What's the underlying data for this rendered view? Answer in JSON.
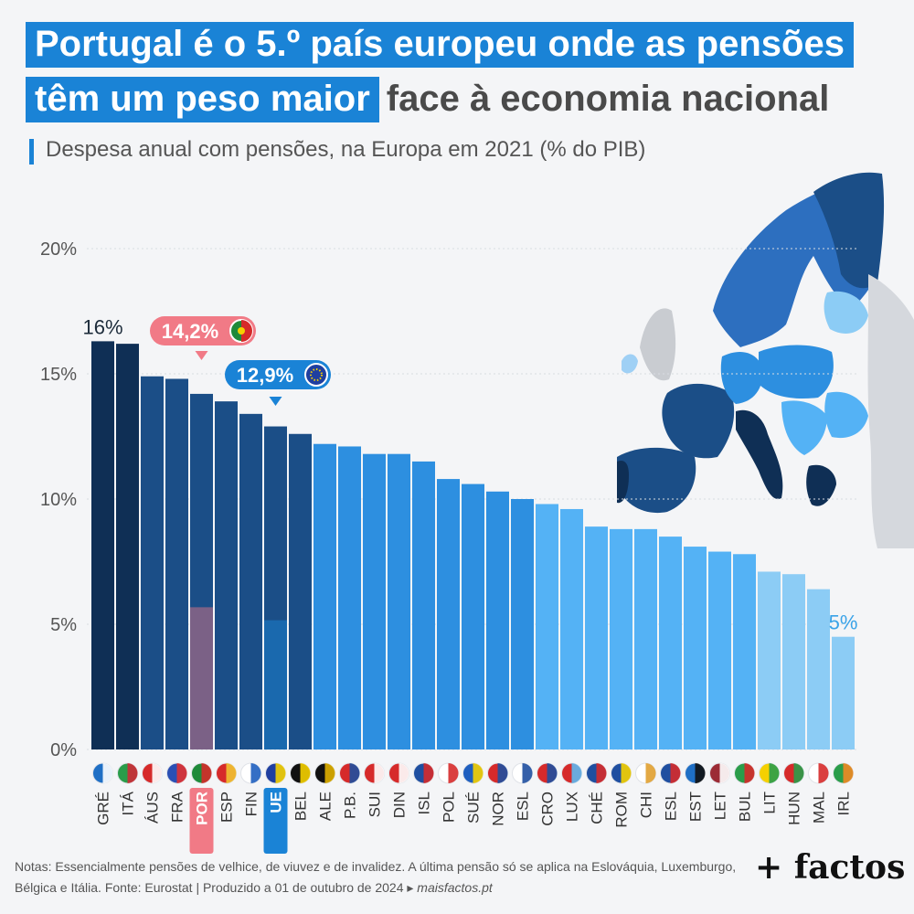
{
  "title": {
    "line1": "Portugal é o 5.º país europeu onde as pensões",
    "line2_highlight": "têm um peso maior",
    "line2_rest": "face à economia nacional"
  },
  "subtitle": "Despesa anual com pensões, na Europa em 2021 (% do PIB)",
  "colors": {
    "darkest": "#0f2f55",
    "dark": "#1b4e87",
    "medium": "#2d8fe0",
    "light": "#54b2f5",
    "lightest": "#8cccf5",
    "portugal_callout": "#f17a86",
    "eu_callout": "#1a83d6",
    "accent": "#1a83d6"
  },
  "chart_data": {
    "type": "bar",
    "title": "Despesa anual com pensões, na Europa em 2021 (% do PIB)",
    "xlabel": "",
    "ylabel": "",
    "ylim": [
      0,
      20
    ],
    "yticks": [
      "0%",
      "5%",
      "10%",
      "15%",
      "20%"
    ],
    "grid": true,
    "categories": [
      "GRÉ",
      "ITÁ",
      "ÁUS",
      "FRA",
      "POR",
      "ESP",
      "FIN",
      "UE",
      "BEL",
      "ALE",
      "P.B.",
      "SUI",
      "DIN",
      "ISL",
      "POL",
      "SUÉ",
      "NOR",
      "ESL",
      "CRO",
      "LUX",
      "CHÉ",
      "ROM",
      "CHI",
      "ESL",
      "EST",
      "LET",
      "BUL",
      "LIT",
      "HUN",
      "MAL",
      "IRL"
    ],
    "values": [
      16.3,
      16.2,
      14.9,
      14.8,
      14.2,
      13.9,
      13.4,
      12.9,
      12.6,
      12.2,
      12.1,
      11.8,
      11.8,
      11.5,
      10.8,
      10.6,
      10.3,
      10.0,
      9.8,
      9.6,
      8.9,
      8.8,
      8.8,
      8.5,
      8.1,
      7.9,
      7.8,
      7.1,
      7.0,
      6.4,
      4.5
    ],
    "shade": [
      0,
      0,
      1,
      1,
      1,
      1,
      1,
      1,
      1,
      2,
      2,
      2,
      2,
      2,
      2,
      2,
      2,
      2,
      3,
      3,
      3,
      3,
      3,
      3,
      3,
      3,
      3,
      4,
      4,
      4,
      4
    ],
    "flags": [
      "gr",
      "it",
      "at",
      "fr",
      "pt",
      "es",
      "fi",
      "eu",
      "be",
      "de",
      "nl",
      "ch",
      "dk",
      "is",
      "pl",
      "se",
      "no",
      "si",
      "hr",
      "lu",
      "cz",
      "ro",
      "cy",
      "sk",
      "ee",
      "lv",
      "bg",
      "lt",
      "hu",
      "mt",
      "ie"
    ],
    "data_labels": [
      {
        "index": 0,
        "text": "16%"
      },
      {
        "index": 30,
        "text": "5%"
      }
    ],
    "callouts": [
      {
        "index": 4,
        "text": "14,2%",
        "badge": "portugal-flag",
        "highlight_label": true
      },
      {
        "index": 7,
        "text": "12,9%",
        "badge": "eu-flag",
        "highlight_label": true
      }
    ]
  },
  "notes": {
    "text": "Notas: Essencialmente pensões de velhice, de viuvez e de invalidez. A última pensão só se aplica na Eslováquia, Luxemburgo, Bélgica e Itália. Fonte: Eurostat | Produzido a 01 de outubro de 2024 ▸ ",
    "link": "maisfactos.pt"
  },
  "logo": "+ factos",
  "map": {
    "description_icon": "europe-map"
  }
}
